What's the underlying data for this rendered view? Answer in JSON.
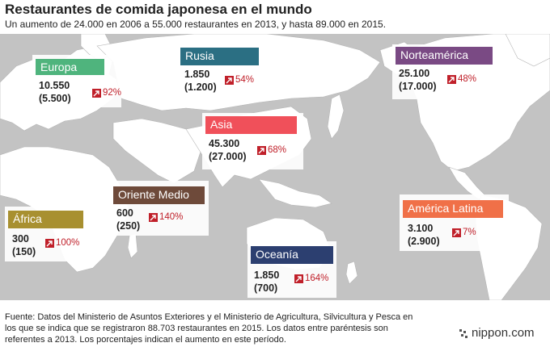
{
  "header": {
    "title": "Restaurantes de comida japonesa en el mundo",
    "subtitle": "Un aumento de 24.000 en 2006 a 55.000 restaurantes en 2013, y hasta 89.000 en 2015."
  },
  "regions": [
    {
      "key": "europa",
      "name": "Europa",
      "value_2015": "10.550",
      "value_2013": "(5.500)",
      "increase": "92%",
      "color": "#4fb47d"
    },
    {
      "key": "rusia",
      "name": "Rusia",
      "value_2015": "1.850",
      "value_2013": "(1.200)",
      "increase": "54%",
      "color": "#2b6f83"
    },
    {
      "key": "norteamerica",
      "name": "Norteamérica",
      "value_2015": "25.100",
      "value_2013": "(17.000)",
      "increase": "48%",
      "color": "#7a4a84"
    },
    {
      "key": "asia",
      "name": "Asia",
      "value_2015": "45.300",
      "value_2013": "(27.000)",
      "increase": "68%",
      "color": "#f0505a"
    },
    {
      "key": "oriente",
      "name": "Oriente Medio",
      "value_2015": "600",
      "value_2013": "(250)",
      "increase": "140%",
      "color": "#6e4a3a"
    },
    {
      "key": "africa",
      "name": "África",
      "value_2015": "300",
      "value_2013": "(150)",
      "increase": "100%",
      "color": "#a89030"
    },
    {
      "key": "latina",
      "name": "América Latina",
      "value_2015": "3.100",
      "value_2013": "(2.900)",
      "increase": "7%",
      "color": "#f07048"
    },
    {
      "key": "oceania",
      "name": "Oceanía",
      "value_2015": "1.850",
      "value_2013": "(700)",
      "increase": "164%",
      "color": "#2c3f70"
    }
  ],
  "footer": {
    "source": "Fuente: Datos del Ministerio de Asuntos Exteriores y el Ministerio de Agricultura, Silvicultura y Pesca en los que se indica que se registraron 88.703 restaurantes en 2015. Los datos entre paréntesis son referentes a 2013. Los porcentajes indican el aumento en este período."
  },
  "brand": {
    "logo": "nippon.com"
  },
  "map": {
    "land_color": "#ffffff",
    "water_color": "#c3c3c3",
    "increase_color": "#c0202a"
  }
}
